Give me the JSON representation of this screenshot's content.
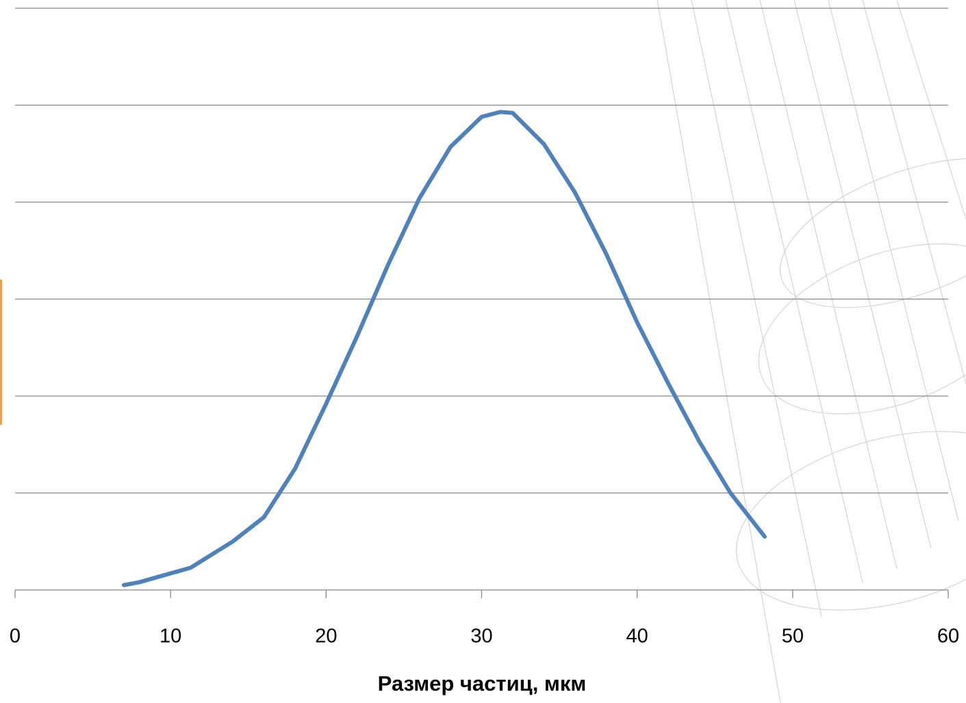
{
  "chart_data": {
    "type": "line",
    "x_label": "Размер частиц, мкм",
    "series": [
      {
        "color": "#4f81bd",
        "x": [
          7,
          8,
          11.3,
          14,
          16,
          17,
          18,
          20,
          22,
          24,
          26,
          28,
          30,
          31.2,
          32,
          34,
          36,
          38,
          40,
          42,
          44,
          46,
          48.2
        ],
        "values": [
          0.05,
          0.08,
          0.23,
          0.5,
          0.75,
          1.0,
          1.25,
          1.92,
          2.62,
          3.36,
          4.04,
          4.57,
          4.88,
          4.93,
          4.92,
          4.6,
          4.1,
          3.47,
          2.76,
          2.13,
          1.53,
          1.0,
          0.55
        ]
      }
    ],
    "xlim": [
      0,
      60
    ],
    "xticks": [
      0,
      10,
      20,
      30,
      40,
      50,
      60
    ],
    "ylim": [
      0,
      6
    ],
    "yticks": [
      0,
      1,
      2,
      3,
      4,
      5,
      6
    ],
    "grid": true
  }
}
